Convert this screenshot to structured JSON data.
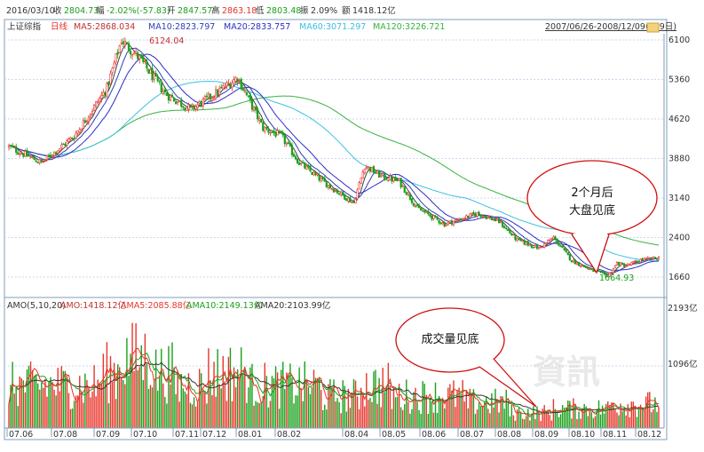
{
  "header": {
    "date": "2016/03/10",
    "close_label": "收",
    "close": "2804.73",
    "change_label": "幅",
    "change": "-2.02%(-57.83)",
    "open_label": "开",
    "open": "2847.57",
    "high_label": "高",
    "high": "2863.18",
    "low_label": "低",
    "low": "2803.48",
    "amplitude_label": "振",
    "amplitude": "2.09%",
    "amount_label": "额",
    "amount": "1418.12亿",
    "range": "2007/06/26-2008/12/09(359日)"
  },
  "price_panel": {
    "index_name": "上证综指",
    "period": "日线",
    "ma5": "MA5:2868.034",
    "ma10": "MA10:2823.797",
    "ma20": "MA20:2833.757",
    "ma60": "MA60:3071.297",
    "ma120": "MA120:3226.721",
    "high_marker": "6124.04",
    "low_marker": "1664.93",
    "callout": "2个月后大盘见底"
  },
  "volume_panel": {
    "title": "AMO(5,10,20)",
    "amo": "AMO:1418.12亿",
    "ama5": "AMA5:2085.88亿",
    "ama10": "AMA10:2149.13亿",
    "ama20": "AMA20:2103.99亿",
    "callout": "成交量见底",
    "watermark": "資訊"
  },
  "colors": {
    "up": "#e8352b",
    "down": "#1aa01a",
    "ma5": "#404040",
    "ma10": "#2e3fb5",
    "ma20": "#2d2dc9",
    "ma60": "#3cc0e0",
    "ma120": "#37b33f",
    "callout": "#d01010",
    "grid": "#c8d8ec",
    "axis": "#7f9db9"
  },
  "chart_data": [
    {
      "type": "candlestick",
      "title": "上证综指 日线",
      "x_ticks": [
        "07.06",
        "07.08",
        "07.09",
        "07.10",
        "07.11",
        "07.12",
        "08.01",
        "08.02",
        "08.04",
        "08.05",
        "08.06",
        "08.07",
        "08.08",
        "08.09",
        "08.10",
        "08.11",
        "08.12"
      ],
      "y_ticks": [
        6100,
        5360,
        4620,
        3880,
        3140,
        2400,
        1660
      ],
      "ylim": [
        1500,
        6250
      ],
      "annotations": [
        {
          "text": "6124.04",
          "x": "07.10",
          "y": 6124.04
        },
        {
          "text": "1664.93",
          "x": "08.11",
          "y": 1664.93
        }
      ],
      "series_close_anchors": {
        "x": [
          0,
          18,
          36,
          54,
          62,
          72,
          86,
          100,
          112,
          126,
          140,
          150,
          160,
          175,
          190,
          196,
          205,
          215,
          225,
          240,
          258,
          270,
          280,
          292,
          300,
          310,
          320,
          330,
          335,
          340,
          348,
          358
        ],
        "close": [
          4100,
          3800,
          4300,
          5200,
          6100,
          5750,
          5100,
          4800,
          5050,
          5400,
          4450,
          4300,
          3800,
          3400,
          3050,
          3750,
          3550,
          3450,
          2950,
          2650,
          2850,
          2700,
          2350,
          2200,
          2400,
          1970,
          1800,
          1680,
          1920,
          1870,
          1980,
          2020
        ]
      },
      "moving_averages": [
        "MA5",
        "MA10",
        "MA20",
        "MA60",
        "MA120"
      ]
    },
    {
      "type": "bar",
      "title": "AMO(5,10,20)",
      "y_ticks": [
        "2193亿",
        "1096亿"
      ],
      "ylim": [
        0,
        2193
      ],
      "series": [
        {
          "name": "AMO",
          "unit": "亿"
        },
        {
          "name": "AMA5"
        },
        {
          "name": "AMA10"
        },
        {
          "name": "AMA20"
        }
      ]
    }
  ]
}
